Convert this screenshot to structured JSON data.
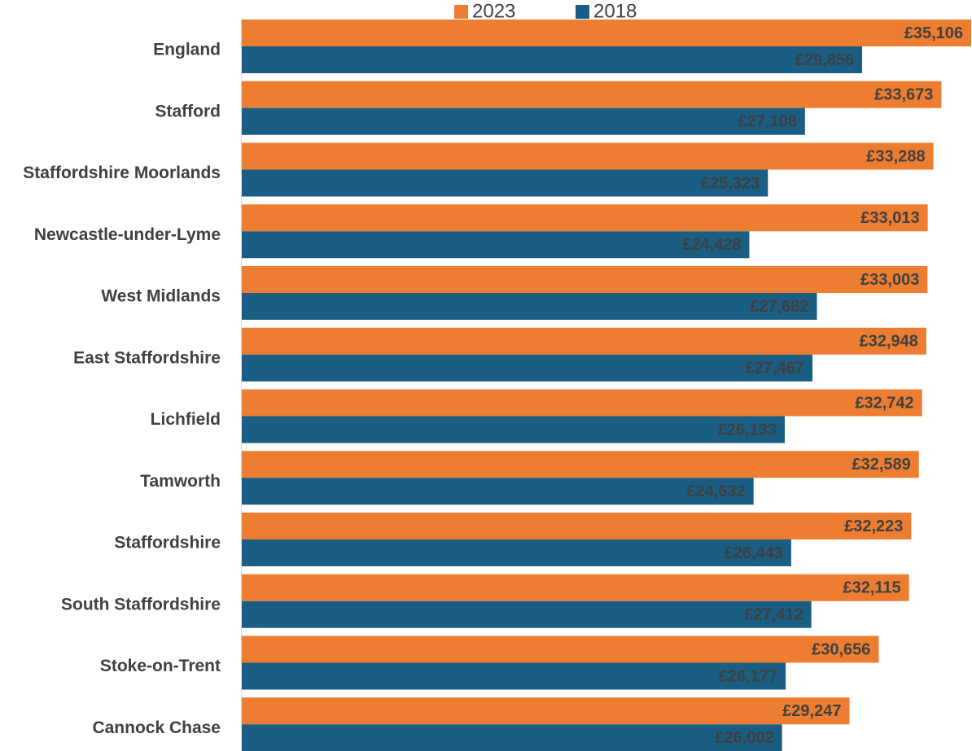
{
  "chart_data": {
    "type": "bar",
    "orientation": "horizontal",
    "categories": [
      "England",
      "Stafford",
      "Staffordshire Moorlands",
      "Newcastle-under-Lyme",
      "West Midlands",
      "East Staffordshire",
      "Lichfield",
      "Tamworth",
      "Staffordshire",
      "South Staffordshire",
      "Stoke-on-Trent",
      "Cannock Chase"
    ],
    "series": [
      {
        "name": "2023",
        "color": "#ED7D31",
        "values": [
          35106,
          33673,
          33288,
          33013,
          33003,
          32948,
          32742,
          32589,
          32223,
          32115,
          30656,
          29247
        ],
        "labels": [
          "£35,106",
          "£33,673",
          "£33,288",
          "£33,013",
          "£33,003",
          "£32,948",
          "£32,742",
          "£32,589",
          "£32,223",
          "£32,115",
          "£30,656",
          "£29,247"
        ]
      },
      {
        "name": "2018",
        "color": "#1A5E83",
        "values": [
          29856,
          27108,
          25323,
          24428,
          27682,
          27467,
          26133,
          24632,
          26443,
          27412,
          26177,
          26002
        ],
        "labels": [
          "£29,856",
          "£27,108",
          "£25,323",
          "£24,428",
          "£27,682",
          "£27,467",
          "£26,133",
          "£24,632",
          "£26,443",
          "£27,412",
          "£26,177",
          "£26,002"
        ]
      }
    ],
    "xlim": [
      0,
      35106
    ],
    "grid": false,
    "legend_position": "top"
  }
}
